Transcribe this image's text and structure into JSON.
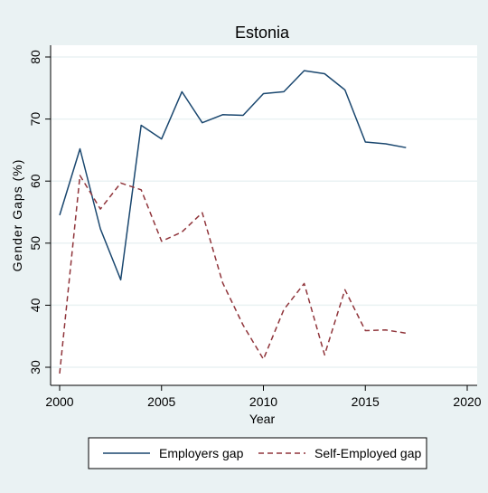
{
  "chart_data": {
    "type": "line",
    "title": "Estonia",
    "xlabel": "Year",
    "ylabel": "Gender Gaps (%)",
    "xlim": [
      2000,
      2020
    ],
    "ylim": [
      30,
      80
    ],
    "xticks": [
      2000,
      2005,
      2010,
      2015,
      2020
    ],
    "yticks": [
      30,
      40,
      50,
      60,
      70,
      80
    ],
    "grid": true,
    "legend_position": "bottom",
    "x": [
      2000,
      2001,
      2002,
      2003,
      2004,
      2005,
      2006,
      2007,
      2008,
      2009,
      2010,
      2011,
      2012,
      2013,
      2014,
      2015,
      2016,
      2017
    ],
    "series": [
      {
        "name": "Employers gap",
        "color": "#1a476f",
        "style": "solid",
        "values": [
          54.5,
          65.2,
          52.3,
          44.1,
          69.0,
          66.8,
          74.4,
          69.4,
          70.7,
          70.6,
          74.1,
          74.4,
          77.8,
          77.3,
          74.7,
          66.3,
          66.0,
          65.4
        ]
      },
      {
        "name": "Self-Employed gap",
        "color": "#90353b",
        "style": "dashed",
        "values": [
          29.0,
          60.9,
          55.5,
          59.7,
          58.6,
          50.3,
          51.8,
          54.9,
          43.6,
          36.8,
          31.3,
          39.3,
          43.5,
          32.0,
          42.5,
          35.9,
          36.0,
          35.5
        ]
      }
    ]
  },
  "colors": {
    "outer_background": "#eaf2f3",
    "plot_background": "#ffffff"
  }
}
